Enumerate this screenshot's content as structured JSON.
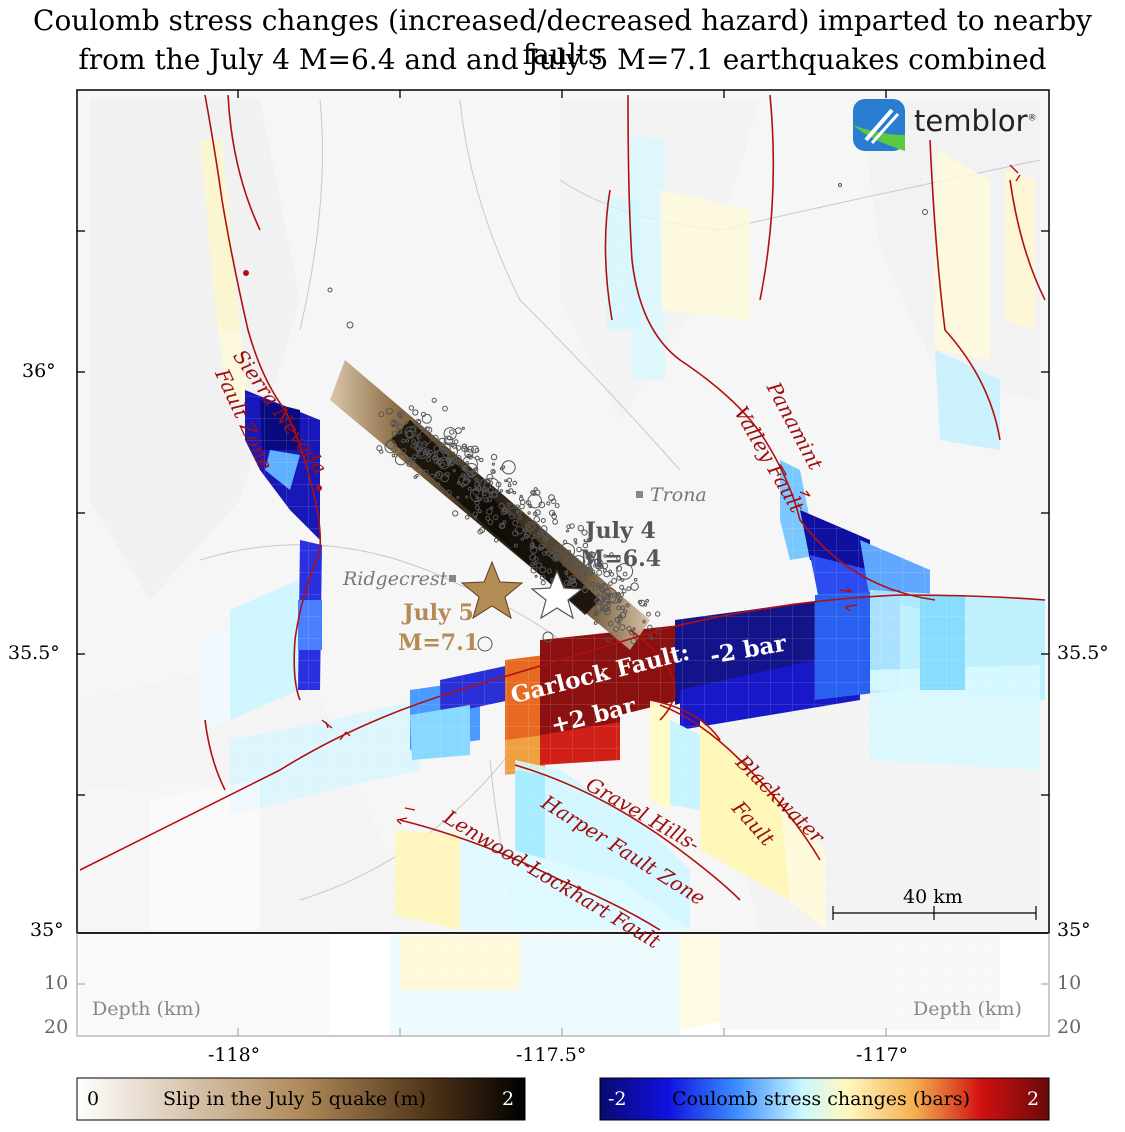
{
  "title": {
    "line1": "Coulomb stress changes (increased/decreased hazard) imparted to nearby faults",
    "line2": "from the July 4 M=6.4 and and July 5 M=7.1 earthquakes combined"
  },
  "brand": {
    "name": "temblor",
    "mark": "®"
  },
  "axes": {
    "lat_ticks": [
      "36°",
      "35.5°",
      "35°"
    ],
    "lat_ticks_right": [
      "35.5°",
      "35°"
    ],
    "lon_ticks": [
      "-118°",
      "-117.5°",
      "-117°"
    ],
    "depth_ticks": [
      "10",
      "20"
    ],
    "depth_label": "Depth (km)"
  },
  "places": {
    "ridgecrest": "Ridgecrest",
    "trona": "Trona"
  },
  "quakes": [
    {
      "date": "July 4",
      "mag": "M=6.4",
      "lon": -117.5,
      "lat": 35.7,
      "color": "#555555"
    },
    {
      "date": "July 5",
      "mag": "M=7.1",
      "lon": -117.6,
      "lat": 35.65,
      "color": "#b48a55"
    }
  ],
  "faults": {
    "sierra_nevada_1": "Sierra Nevada",
    "sierra_nevada_2": "Fault Zone",
    "panamint_1": "Panamint",
    "panamint_2": "Valley Fault",
    "garlock": "Garlock Fault:",
    "garlock_plus": "+2 bar",
    "garlock_minus": "-2 bar",
    "blackwater_1": "Blackwater",
    "blackwater_2": "Fault",
    "gravel_1": "Gravel Hills-",
    "gravel_2": "Harper Fault Zone",
    "lenwood": "Lenwood-Lockhart Fault"
  },
  "scale_bar": {
    "label": "40 km"
  },
  "colorbars": {
    "slip": {
      "min": "0",
      "max": "2",
      "label": "Slip in the July 5 quake (m)"
    },
    "coulomb": {
      "min": "-2",
      "max": "2",
      "label": "Coulomb stress changes (bars)"
    }
  },
  "colors": {
    "fault_line": "#b01010",
    "label_red": "#9e0d0d",
    "dark_blue": "#1a1a9a",
    "dark_red": "#8b1010"
  }
}
